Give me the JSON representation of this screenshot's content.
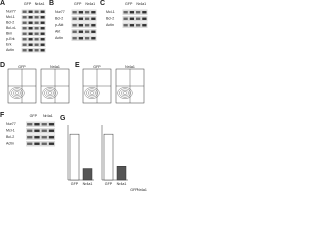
{
  "panels": {
    "A": {
      "letter": "A",
      "header": [
        "GFP",
        "Nr4a1"
      ],
      "rows": [
        "Nur77",
        "Mcl-1",
        "Bcl-2",
        "Bcl-xL",
        "Bim",
        "p-Erk",
        "Erk",
        "Actin"
      ]
    },
    "B": {
      "letter": "B",
      "header": [
        "GFP",
        "Nr4a1"
      ],
      "rows": [
        "Nur77",
        "Bcl-2",
        "p-Akt",
        "Akt",
        "Actin"
      ]
    },
    "C": {
      "letter": "C",
      "header": [
        "GFP",
        "Nr4a1"
      ],
      "rows": [
        "Mcl-1",
        "Bcl-2",
        "Actin"
      ]
    },
    "D": {
      "letter": "D",
      "plots": [
        "GFP",
        "Nr4a1"
      ]
    },
    "E": {
      "letter": "E",
      "plots": [
        "GFP",
        "Nr4a1"
      ]
    },
    "F": {
      "letter": "F",
      "header": [
        "GFP",
        "Nr4a1"
      ],
      "rows": [
        "Nur77",
        "Mcl-1",
        "Bcl-2",
        "Actin"
      ]
    },
    "G": {
      "letter": "G",
      "legend": [
        "GFP",
        "Nr4a1"
      ]
    }
  },
  "chart_data": [
    {
      "type": "bar",
      "categories": [
        "GFP",
        "Nr4a1"
      ],
      "values": [
        1.0,
        0.25
      ],
      "colors": [
        "#ffffff",
        "#555555"
      ],
      "ylim": [
        0,
        1.2
      ]
    },
    {
      "type": "bar",
      "categories": [
        "GFP",
        "Nr4a1"
      ],
      "values": [
        1.0,
        0.3
      ],
      "colors": [
        "#ffffff",
        "#555555"
      ],
      "ylim": [
        0,
        1.2
      ]
    }
  ]
}
